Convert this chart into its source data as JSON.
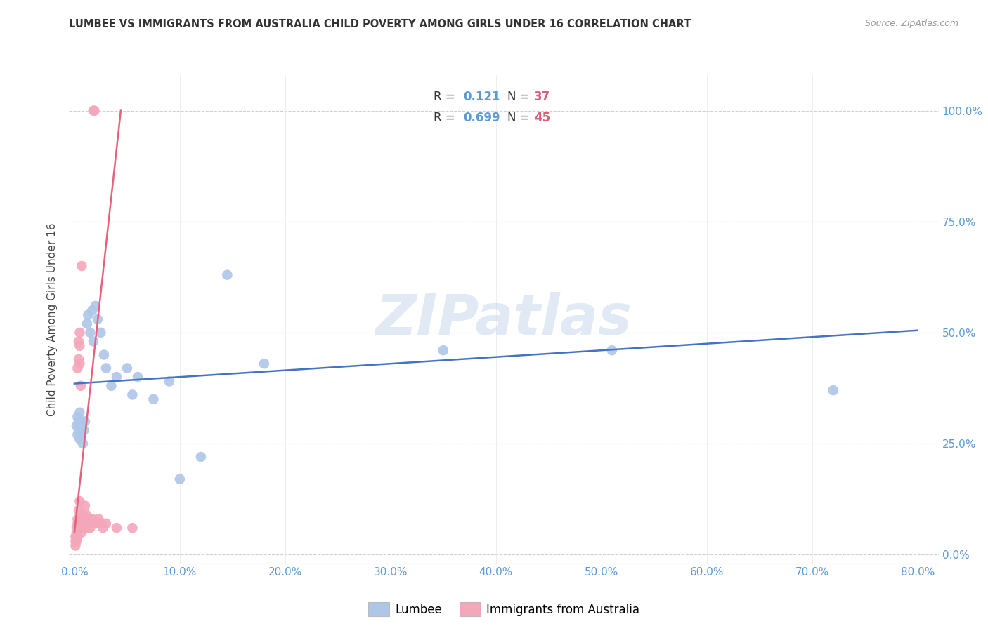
{
  "title": "LUMBEE VS IMMIGRANTS FROM AUSTRALIA CHILD POVERTY AMONG GIRLS UNDER 16 CORRELATION CHART",
  "source": "Source: ZipAtlas.com",
  "ylabel": "Child Poverty Among Girls Under 16",
  "xlabel_lumbee": "Lumbee",
  "xlabel_australia": "Immigrants from Australia",
  "watermark": "ZIPatlas",
  "xlim": [
    -0.005,
    0.82
  ],
  "ylim": [
    -0.02,
    1.08
  ],
  "xtick_vals": [
    0.0,
    0.1,
    0.2,
    0.3,
    0.4,
    0.5,
    0.6,
    0.7,
    0.8
  ],
  "ytick_vals": [
    0.0,
    0.25,
    0.5,
    0.75,
    1.0
  ],
  "lumbee_R": "0.121",
  "lumbee_N": "37",
  "australia_R": "0.699",
  "australia_N": "45",
  "lumbee_color": "#aec6e8",
  "australia_color": "#f4a7b9",
  "lumbee_line_color": "#4472c4",
  "australia_line_color": "#e8607a",
  "lumbee_points": [
    [
      0.002,
      0.29
    ],
    [
      0.003,
      0.27
    ],
    [
      0.003,
      0.31
    ],
    [
      0.004,
      0.28
    ],
    [
      0.004,
      0.3
    ],
    [
      0.005,
      0.26
    ],
    [
      0.005,
      0.32
    ],
    [
      0.006,
      0.29
    ],
    [
      0.006,
      0.27
    ],
    [
      0.007,
      0.3
    ],
    [
      0.008,
      0.25
    ],
    [
      0.009,
      0.28
    ],
    [
      0.01,
      0.3
    ],
    [
      0.012,
      0.52
    ],
    [
      0.013,
      0.54
    ],
    [
      0.015,
      0.5
    ],
    [
      0.017,
      0.55
    ],
    [
      0.018,
      0.48
    ],
    [
      0.02,
      0.56
    ],
    [
      0.022,
      0.53
    ],
    [
      0.025,
      0.5
    ],
    [
      0.028,
      0.45
    ],
    [
      0.03,
      0.42
    ],
    [
      0.035,
      0.38
    ],
    [
      0.04,
      0.4
    ],
    [
      0.05,
      0.42
    ],
    [
      0.055,
      0.36
    ],
    [
      0.06,
      0.4
    ],
    [
      0.075,
      0.35
    ],
    [
      0.09,
      0.39
    ],
    [
      0.1,
      0.17
    ],
    [
      0.12,
      0.22
    ],
    [
      0.145,
      0.63
    ],
    [
      0.18,
      0.43
    ],
    [
      0.35,
      0.46
    ],
    [
      0.51,
      0.46
    ],
    [
      0.72,
      0.37
    ]
  ],
  "australia_points": [
    [
      0.001,
      0.02
    ],
    [
      0.001,
      0.03
    ],
    [
      0.001,
      0.04
    ],
    [
      0.002,
      0.03
    ],
    [
      0.002,
      0.05
    ],
    [
      0.002,
      0.06
    ],
    [
      0.003,
      0.04
    ],
    [
      0.003,
      0.07
    ],
    [
      0.003,
      0.08
    ],
    [
      0.003,
      0.42
    ],
    [
      0.004,
      0.44
    ],
    [
      0.004,
      0.48
    ],
    [
      0.004,
      0.06
    ],
    [
      0.004,
      0.1
    ],
    [
      0.005,
      0.12
    ],
    [
      0.005,
      0.43
    ],
    [
      0.005,
      0.47
    ],
    [
      0.005,
      0.5
    ],
    [
      0.006,
      0.08
    ],
    [
      0.006,
      0.38
    ],
    [
      0.007,
      0.65
    ],
    [
      0.007,
      0.05
    ],
    [
      0.007,
      0.07
    ],
    [
      0.008,
      0.06
    ],
    [
      0.008,
      0.09
    ],
    [
      0.009,
      0.07
    ],
    [
      0.01,
      0.08
    ],
    [
      0.01,
      0.11
    ],
    [
      0.011,
      0.09
    ],
    [
      0.012,
      0.07
    ],
    [
      0.013,
      0.06
    ],
    [
      0.014,
      0.08
    ],
    [
      0.015,
      0.06
    ],
    [
      0.016,
      0.07
    ],
    [
      0.017,
      0.08
    ],
    [
      0.018,
      1.0
    ],
    [
      0.019,
      1.0
    ],
    [
      0.02,
      0.07
    ],
    [
      0.022,
      0.07
    ],
    [
      0.023,
      0.08
    ],
    [
      0.025,
      0.07
    ],
    [
      0.027,
      0.06
    ],
    [
      0.03,
      0.07
    ],
    [
      0.04,
      0.06
    ],
    [
      0.055,
      0.06
    ]
  ],
  "lumbee_line_x": [
    0.0,
    0.8
  ],
  "lumbee_line_y": [
    0.385,
    0.505
  ],
  "australia_line_x": [
    0.0,
    0.044
  ],
  "australia_line_y": [
    0.05,
    1.0
  ]
}
